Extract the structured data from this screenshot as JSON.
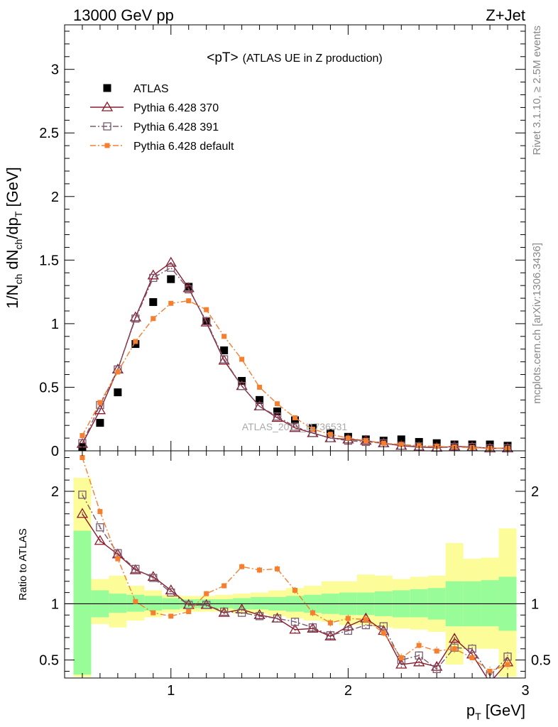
{
  "header": {
    "left": "13000 GeV pp",
    "right": "Z+Jet"
  },
  "side_labels": {
    "rivet": "Rivet 3.1.10, ≥ 2.5M events",
    "mcplots": "mcplots.cern.ch [arXiv:1306.3436]"
  },
  "watermark": "ATLAS_2019_I1736531",
  "colors": {
    "atlas": "#000000",
    "p370": "#8b1a2b",
    "p391": "#7a5a6e",
    "pdefault": "#f57f2e",
    "band_inner": "#98fc98",
    "band_outer": "#fcfc98"
  },
  "chart_data": [
    {
      "type": "scatter",
      "panel": "main",
      "title": "<pT>",
      "title_suffix": "(ATLAS UE in Z production)",
      "ylabel": "1/N_ch dN_ch/dp_T [GeV]",
      "xlim": [
        0.4,
        3.0
      ],
      "ylim": [
        0,
        3.35
      ],
      "yticks": [
        0,
        0.5,
        1,
        1.5,
        2,
        2.5,
        3
      ],
      "ytick_labels": [
        "0",
        "0.5",
        "1",
        "1.5",
        "2",
        "2.5",
        "3"
      ],
      "legend_position": "top-left",
      "x": [
        0.5,
        0.6,
        0.7,
        0.8,
        0.9,
        1.0,
        1.1,
        1.2,
        1.3,
        1.4,
        1.5,
        1.6,
        1.7,
        1.8,
        1.9,
        2.0,
        2.1,
        2.2,
        2.3,
        2.4,
        2.5,
        2.6,
        2.7,
        2.8,
        2.9
      ],
      "series": [
        {
          "name": "ATLAS",
          "key": "atlas",
          "marker": "square-filled",
          "values": [
            0.03,
            0.22,
            0.46,
            0.84,
            1.17,
            1.35,
            1.29,
            1.02,
            0.79,
            0.55,
            0.4,
            0.31,
            0.24,
            0.18,
            0.14,
            0.11,
            0.09,
            0.08,
            0.09,
            0.07,
            0.06,
            0.05,
            0.05,
            0.05,
            0.04
          ]
        },
        {
          "name": "Pythia 6.428 370",
          "key": "p370",
          "marker": "triangle-open",
          "line": "solid",
          "values": [
            0.055,
            0.32,
            0.64,
            1.05,
            1.38,
            1.48,
            1.28,
            1.01,
            0.71,
            0.51,
            0.35,
            0.26,
            0.18,
            0.14,
            0.1,
            0.09,
            0.08,
            0.06,
            0.04,
            0.03,
            0.025,
            0.035,
            0.03,
            0.02,
            0.02
          ]
        },
        {
          "name": "Pythia 6.428 391",
          "key": "p391",
          "marker": "square-open",
          "line": "dashdot",
          "values": [
            0.06,
            0.36,
            0.64,
            1.04,
            1.36,
            1.44,
            1.27,
            1.02,
            0.72,
            0.51,
            0.35,
            0.27,
            0.19,
            0.14,
            0.1,
            0.08,
            0.07,
            0.06,
            0.04,
            0.035,
            0.025,
            0.03,
            0.03,
            0.02,
            0.02
          ]
        },
        {
          "name": "Pythia 6.428 default",
          "key": "pdefault",
          "marker": "square-filled-small",
          "line": "dashdot",
          "values": [
            0.12,
            0.38,
            0.62,
            0.86,
            1.04,
            1.16,
            1.18,
            1.11,
            0.9,
            0.72,
            0.5,
            0.37,
            0.26,
            0.17,
            0.13,
            0.1,
            0.08,
            0.06,
            0.05,
            0.04,
            0.035,
            0.03,
            0.025,
            0.02,
            0.02
          ]
        }
      ]
    },
    {
      "type": "line",
      "panel": "ratio",
      "ylabel": "Ratio to ATLAS",
      "xlabel": "p_T [GeV]",
      "xlim": [
        0.4,
        3.0
      ],
      "ylim": [
        0.34,
        2.36
      ],
      "reference_line": 1,
      "xticks": [
        1,
        2,
        3
      ],
      "xtick_labels": [
        "1",
        "2",
        "3"
      ],
      "yticks": [
        0.5,
        1,
        2
      ],
      "ytick_labels": [
        "0.5",
        "1",
        "2"
      ],
      "x": [
        0.5,
        0.6,
        0.7,
        0.8,
        0.9,
        1.0,
        1.1,
        1.2,
        1.3,
        1.4,
        1.5,
        1.6,
        1.7,
        1.8,
        1.9,
        2.0,
        2.1,
        2.2,
        2.3,
        2.4,
        2.5,
        2.6,
        2.7,
        2.8,
        2.9
      ],
      "bands": {
        "bin_edges": [
          0.45,
          0.55,
          0.65,
          0.75,
          0.85,
          0.95,
          1.05,
          1.15,
          1.25,
          1.35,
          1.45,
          1.55,
          1.65,
          1.75,
          1.85,
          1.95,
          2.05,
          2.15,
          2.25,
          2.35,
          2.45,
          2.55,
          2.65,
          2.75,
          2.85,
          2.95
        ],
        "inner_low": [
          0.37,
          0.88,
          0.92,
          0.93,
          0.94,
          0.95,
          0.96,
          0.96,
          0.96,
          0.95,
          0.95,
          0.94,
          0.93,
          0.92,
          0.91,
          0.9,
          0.9,
          0.89,
          0.88,
          0.88,
          0.86,
          0.8,
          0.8,
          0.8,
          0.76
        ],
        "inner_high": [
          1.65,
          1.12,
          1.09,
          1.08,
          1.07,
          1.05,
          1.04,
          1.04,
          1.04,
          1.05,
          1.06,
          1.06,
          1.07,
          1.08,
          1.09,
          1.1,
          1.1,
          1.11,
          1.12,
          1.13,
          1.14,
          1.2,
          1.2,
          1.21,
          1.24
        ],
        "outer_low": [
          0.35,
          0.82,
          0.79,
          0.85,
          0.88,
          0.92,
          0.93,
          0.93,
          0.93,
          0.91,
          0.91,
          0.89,
          0.87,
          0.85,
          0.84,
          0.81,
          0.81,
          0.79,
          0.78,
          0.77,
          0.75,
          0.46,
          0.6,
          0.6,
          0.35
        ],
        "outer_high": [
          2.12,
          1.22,
          1.25,
          1.16,
          1.12,
          1.08,
          1.07,
          1.07,
          1.08,
          1.09,
          1.1,
          1.12,
          1.14,
          1.16,
          1.2,
          1.2,
          1.26,
          1.25,
          1.22,
          1.24,
          1.25,
          1.54,
          1.4,
          1.41,
          1.67
        ]
      },
      "series": [
        {
          "name": "Pythia 6.428 370",
          "key": "p370",
          "values": [
            1.8,
            1.56,
            1.44,
            1.3,
            1.24,
            1.12,
            0.99,
            0.99,
            0.92,
            0.95,
            0.9,
            0.87,
            0.77,
            0.78,
            0.71,
            0.8,
            0.87,
            0.76,
            0.46,
            0.48,
            0.44,
            0.69,
            0.55,
            0.3,
            0.48
          ]
        },
        {
          "name": "Pythia 6.428 391",
          "key": "p391",
          "values": [
            1.97,
            1.68,
            1.45,
            1.31,
            1.23,
            1.1,
            0.99,
            0.99,
            0.93,
            0.92,
            0.89,
            0.87,
            0.84,
            0.79,
            0.72,
            0.76,
            0.81,
            0.8,
            0.5,
            0.54,
            0.42,
            0.61,
            0.6,
            0.36,
            0.53
          ]
        },
        {
          "name": "Pythia 6.428 default",
          "key": "pdefault",
          "values": [
            2.3,
            1.82,
            1.4,
            1.02,
            0.92,
            0.89,
            0.93,
            1.09,
            1.16,
            1.33,
            1.3,
            1.31,
            1.12,
            0.92,
            0.83,
            0.87,
            0.86,
            0.74,
            0.52,
            0.63,
            0.58,
            0.6,
            0.52,
            0.4,
            0.46
          ]
        }
      ]
    }
  ]
}
